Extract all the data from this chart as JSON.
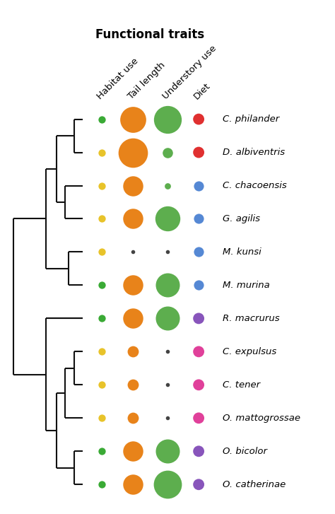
{
  "title": "Functional traits",
  "column_labels": [
    "Habitat use",
    "Tail length",
    "Understory use",
    "Diet"
  ],
  "species": [
    "C. philander",
    "D. albiventris",
    "C. chacoensis",
    "G. agilis",
    "M. kunsi",
    "M. murina",
    "R. macrurus",
    "C. expulsus",
    "C. tener",
    "O. mattogrossae",
    "O. bicolor",
    "O. catherinae"
  ],
  "habitat_color": [
    "#3aaa35",
    "#e8c32a",
    "#e8c32a",
    "#e8c32a",
    "#e8c32a",
    "#3aaa35",
    "#3aaa35",
    "#e8c32a",
    "#e8c32a",
    "#e8c32a",
    "#3aaa35",
    "#3aaa35"
  ],
  "tail_color": [
    "#e8831a",
    "#e8831a",
    "#e8831a",
    "#e8831a",
    null,
    "#e8831a",
    "#e8831a",
    "#e8831a",
    "#e8831a",
    "#e8831a",
    "#e8831a",
    "#e8831a"
  ],
  "understory_color": [
    "#5dae4e",
    "#5dae4e",
    "#5dae4e",
    "#5dae4e",
    null,
    "#5dae4e",
    "#5dae4e",
    null,
    null,
    null,
    "#5dae4e",
    "#5dae4e"
  ],
  "diet_color": [
    "#e03030",
    "#e03030",
    "#5588d4",
    "#5588d4",
    "#5588d4",
    "#5588d4",
    "#8855bb",
    "#e0409a",
    "#e0409a",
    "#e0409a",
    "#8855bb",
    "#8855bb"
  ],
  "habitat_size": [
    55,
    55,
    55,
    55,
    55,
    55,
    55,
    55,
    55,
    55,
    55,
    55
  ],
  "tail_size": [
    700,
    900,
    420,
    420,
    0,
    420,
    420,
    130,
    130,
    130,
    420,
    420
  ],
  "understory_size": [
    800,
    110,
    40,
    650,
    0,
    600,
    600,
    0,
    0,
    0,
    600,
    820
  ],
  "diet_size": [
    130,
    130,
    130,
    130,
    130,
    130,
    130,
    130,
    130,
    130,
    130,
    130
  ],
  "dot_marker_size": 6,
  "tree_lw": 1.5,
  "tree_color": "#111111",
  "font_size_labels": 9.5,
  "font_size_header": 9.5,
  "title_fontsize": 12
}
